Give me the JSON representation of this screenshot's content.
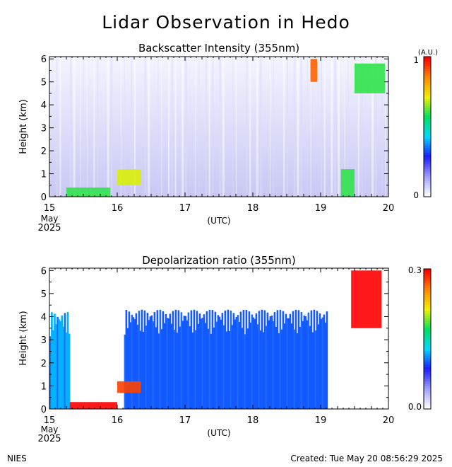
{
  "title": "Lidar Observation in Hedo",
  "footer": {
    "left": "NIES",
    "right": "Created: Tue May 20 08:56:29 2025"
  },
  "colors": {
    "background": "#ffffff",
    "axis": "#000000",
    "colormap": [
      "#ffffff",
      "#9d9dff",
      "#1b1bff",
      "#00d8ff",
      "#00e060",
      "#f0f000",
      "#ff8a00",
      "#ff0000"
    ]
  },
  "chart_data": [
    {
      "type": "heatmap",
      "title": "Backscatter Intensity (355nm)",
      "xlabel": "(UTC)",
      "ylabel": "Height (km)",
      "xlim": [
        15,
        20
      ],
      "ylim": [
        0,
        6.1
      ],
      "xticks": [
        "15",
        "16",
        "17",
        "18",
        "19",
        "20"
      ],
      "yticks": [
        "0",
        "1",
        "2",
        "3",
        "4",
        "5",
        "6"
      ],
      "date_label": [
        "May",
        "2025"
      ],
      "colorbar": {
        "unit": "(A.U.)",
        "min_label": "0",
        "max_label": "1",
        "range": [
          0,
          1
        ]
      },
      "features": [
        {
          "kind": "boundary_layer",
          "x_range": [
            15.25,
            15.9
          ],
          "height_range": [
            0,
            0.4
          ],
          "level": 0.6
        },
        {
          "kind": "cloud",
          "x_range": [
            16.0,
            16.35
          ],
          "height_range": [
            0.5,
            1.2
          ],
          "level": 0.7
        },
        {
          "kind": "cloud",
          "x_range": [
            18.85,
            18.95
          ],
          "height_range": [
            5.0,
            6.0
          ],
          "level": 0.9
        },
        {
          "kind": "cloud",
          "x_range": [
            19.5,
            19.95
          ],
          "height_range": [
            4.5,
            5.8
          ],
          "level": 0.6
        },
        {
          "kind": "cloud",
          "x_range": [
            19.3,
            19.5
          ],
          "height_range": [
            0.0,
            1.2
          ],
          "level": 0.6
        }
      ]
    },
    {
      "type": "heatmap",
      "title": "Depolarization ratio (355nm)",
      "xlabel": "(UTC)",
      "ylabel": "Height (km)",
      "xlim": [
        15,
        20
      ],
      "ylim": [
        0,
        6.1
      ],
      "xticks": [
        "15",
        "16",
        "17",
        "18",
        "19",
        "20"
      ],
      "yticks": [
        "0",
        "1",
        "2",
        "3",
        "4",
        "5",
        "6"
      ],
      "date_label": [
        "May",
        "2025"
      ],
      "colorbar": {
        "unit": "",
        "min_label": "0.0",
        "max_label": "0.3",
        "range": [
          0,
          0.3
        ]
      },
      "features": [
        {
          "kind": "aerosol_layer",
          "x_range": [
            15.0,
            15.3
          ],
          "height_range": [
            0,
            4.2
          ],
          "level": 0.12
        },
        {
          "kind": "aerosol_layer",
          "x_range": [
            16.1,
            19.1
          ],
          "height_range": [
            0,
            4.3
          ],
          "level": 0.1
        },
        {
          "kind": "high_depol",
          "x_range": [
            15.3,
            16.0
          ],
          "height_range": [
            0,
            0.3
          ],
          "level": 0.3
        },
        {
          "kind": "high_depol",
          "x_range": [
            16.0,
            16.35
          ],
          "height_range": [
            0.7,
            1.2
          ],
          "level": 0.28
        },
        {
          "kind": "high_depol",
          "x_range": [
            19.45,
            19.9
          ],
          "height_range": [
            3.5,
            6.0
          ],
          "level": 0.3
        }
      ]
    }
  ]
}
